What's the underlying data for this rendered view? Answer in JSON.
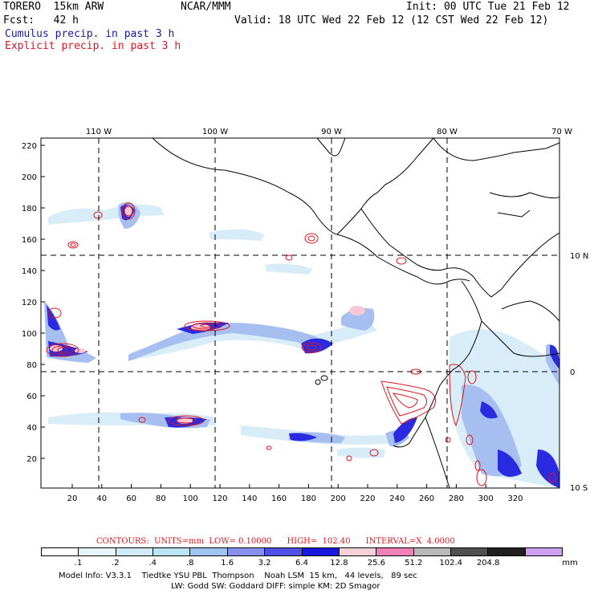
{
  "header": {
    "model": "TORERO  15km ARW",
    "org": "NCAR/MMM",
    "init": "Init: 00 UTC Tue 21 Feb 12",
    "fcst": "Fcst:   42 h",
    "valid": "Valid: 18 UTC Wed 22 Feb 12 (12 CST Wed 22 Feb 12)",
    "field1": "Cumulus precip. in past 3 h",
    "field2": "Explicit precip. in past 3 h"
  },
  "colors": {
    "field1": "#1a1aa8",
    "field2": "#e0141e",
    "contour": "#e0141e",
    "grid": "#000000"
  },
  "map": {
    "lon_labels": [
      "110 W",
      "100 W",
      "90 W",
      "80 W",
      "70 W"
    ],
    "lat_labels": [
      "10 N",
      "0",
      "10 S"
    ],
    "y_ticks": [
      "220",
      "200",
      "180",
      "160",
      "140",
      "120",
      "100",
      "80",
      "60",
      "40",
      "20"
    ],
    "x_ticks": [
      "20",
      "40",
      "60",
      "80",
      "100",
      "120",
      "140",
      "160",
      "180",
      "200",
      "220",
      "240",
      "260",
      "280",
      "300",
      "320"
    ]
  },
  "contours_info": "CONTOURS:  UNITS=mm  LOW= 0.10000      HIGH=  102.40      INTERVAL=X  4.0000",
  "colorbar": {
    "colors": [
      "#ffffff",
      "#e8f4fc",
      "#d0ecf8",
      "#b8e4f4",
      "#a0c4f0",
      "#8890f0",
      "#5050e8",
      "#1818e0",
      "#f8d0d8",
      "#f080b8",
      "#b8b8b8",
      "#505050",
      "#202020",
      "#d0a0f0"
    ],
    "labels": [
      ".1",
      ".2",
      ".4",
      ".8",
      "1.6",
      "3.2",
      "6.4",
      "12.8",
      "25.6",
      "51.2",
      "102.4",
      "204.8"
    ],
    "unit": "mm"
  },
  "model_info": {
    "line1": "Model Info: V3.3.1    Tiedtke YSU PBL  Thompson    Noah LSM  15 km,   44 levels,   89 sec",
    "line2": "LW: Godd SW: Goddard DIFF: simple KM: 2D Smagor"
  }
}
